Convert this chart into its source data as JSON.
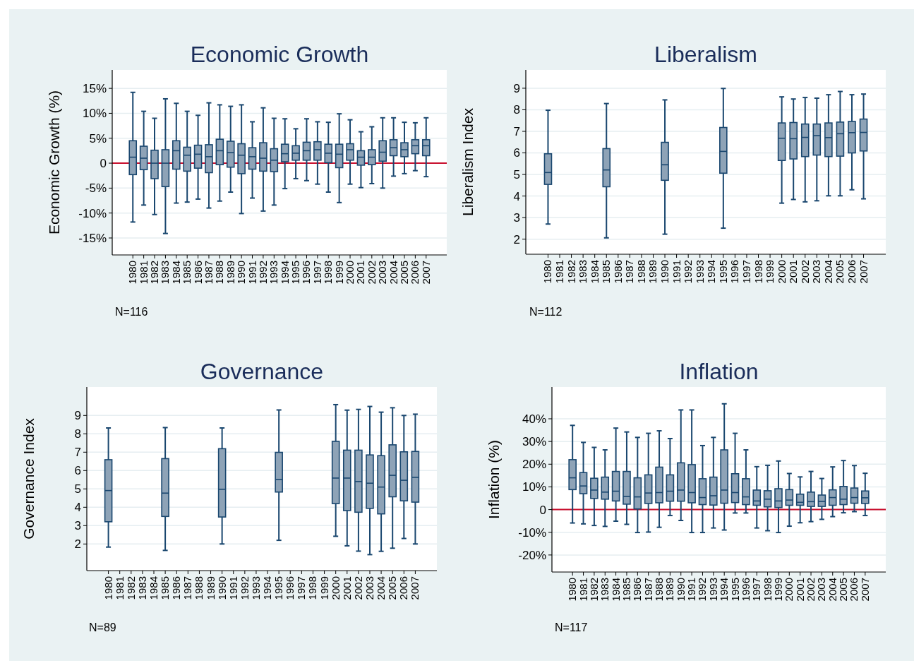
{
  "chart_data": [
    {
      "type": "box",
      "title": "Economic Growth",
      "ylabel": "Economic Growth (%)",
      "annotations": [
        "N=116"
      ],
      "grid": "y",
      "color": "#8ea3b7",
      "categories": [
        "1980",
        "1981",
        "1982",
        "1983",
        "1984",
        "1985",
        "1986",
        "1987",
        "1988",
        "1989",
        "1990",
        "1991",
        "1992",
        "1993",
        "1994",
        "1995",
        "1996",
        "1997",
        "1998",
        "1999",
        "2000",
        "2001",
        "2002",
        "2003",
        "2004",
        "2005",
        "2006",
        "2007"
      ],
      "ylim": [
        -18.4,
        18.7
      ],
      "yticks": [
        {
          "value": 15,
          "label": "15%"
        },
        {
          "value": 10,
          "label": "10%"
        },
        {
          "value": 5,
          "label": "5%"
        },
        0,
        {
          "value": -5,
          "label": "-5%"
        },
        {
          "value": -10,
          "label": "-10%"
        },
        {
          "value": -15,
          "label": "-15%"
        }
      ],
      "ref_lines": [
        {
          "axis": "y",
          "value": 0,
          "label": null,
          "color": "#c8102e"
        }
      ],
      "boxes": [
        {
          "low": -11.8,
          "q1": -2.3,
          "median": 1.2,
          "q3": 4.5,
          "high": 14.2
        },
        {
          "low": -8.4,
          "q1": -1.3,
          "median": 1.0,
          "q3": 3.4,
          "high": 10.4
        },
        {
          "low": -10.3,
          "q1": -3.1,
          "median": 0,
          "q3": 2.6,
          "high": 9.0
        },
        {
          "low": -14.1,
          "q1": -4.7,
          "median": 0,
          "q3": 2.7,
          "high": 12.9
        },
        {
          "low": -8.0,
          "q1": -1.2,
          "median": 2.5,
          "q3": 4.5,
          "high": 12.0
        },
        {
          "low": -7.8,
          "q1": -1.6,
          "median": 1.6,
          "q3": 3.2,
          "high": 10.4
        },
        {
          "low": -7.2,
          "q1": -1.0,
          "median": 1.8,
          "q3": 3.6,
          "high": 9.6
        },
        {
          "low": -9.0,
          "q1": -1.9,
          "median": 1.3,
          "q3": 3.7,
          "high": 12.1
        },
        {
          "low": -7.6,
          "q1": -0.3,
          "median": 2.5,
          "q3": 4.8,
          "high": 11.7
        },
        {
          "low": -5.8,
          "q1": -0.8,
          "median": 2.1,
          "q3": 4.4,
          "high": 11.4
        },
        {
          "low": -10.1,
          "q1": -2.1,
          "median": 1.6,
          "q3": 3.9,
          "high": 11.7
        },
        {
          "low": -7.0,
          "q1": -1.2,
          "median": 1.3,
          "q3": 3.1,
          "high": 8.3
        },
        {
          "low": -9.6,
          "q1": -1.6,
          "median": 1.0,
          "q3": 4.1,
          "high": 11.1
        },
        {
          "low": -8.4,
          "q1": -1.7,
          "median": 0.6,
          "q3": 2.9,
          "high": 9.0
        },
        {
          "low": -5.1,
          "q1": 0.3,
          "median": 1.9,
          "q3": 3.8,
          "high": 8.9
        },
        {
          "low": -3.1,
          "q1": 0.6,
          "median": 2.0,
          "q3": 3.5,
          "high": 6.9
        },
        {
          "low": -3.5,
          "q1": 0.6,
          "median": 2.5,
          "q3": 4.2,
          "high": 8.9
        },
        {
          "low": -4.2,
          "q1": 0.6,
          "median": 2.7,
          "q3": 4.3,
          "high": 8.3
        },
        {
          "low": -5.8,
          "q1": 0.1,
          "median": 2.0,
          "q3": 3.8,
          "high": 8.2
        },
        {
          "low": -7.9,
          "q1": -0.9,
          "median": 1.8,
          "q3": 3.8,
          "high": 9.9
        },
        {
          "low": -4.2,
          "q1": 0.6,
          "median": 2.7,
          "q3": 3.9,
          "high": 8.7
        },
        {
          "low": -4.9,
          "q1": -0.4,
          "median": 1.2,
          "q3": 2.5,
          "high": 6.3
        },
        {
          "low": -4.1,
          "q1": -0.3,
          "median": 1.2,
          "q3": 2.7,
          "high": 7.3
        },
        {
          "low": -5.0,
          "q1": 0.4,
          "median": 2.2,
          "q3": 4.5,
          "high": 9.1
        },
        {
          "low": -2.6,
          "q1": 1.5,
          "median": 3.1,
          "q3": 4.7,
          "high": 9.1
        },
        {
          "low": -2.1,
          "q1": 1.3,
          "median": 2.7,
          "q3": 4.1,
          "high": 8.2
        },
        {
          "low": -1.5,
          "q1": 1.9,
          "median": 3.5,
          "q3": 4.7,
          "high": 8.1
        },
        {
          "low": -2.7,
          "q1": 1.5,
          "median": 3.5,
          "q3": 4.7,
          "high": 9.1
        }
      ]
    },
    {
      "type": "box",
      "title": "Liberalism",
      "ylabel": "Liberalism Index",
      "annotations": [
        "N=112"
      ],
      "grid": "y",
      "color": "#8ea3b7",
      "categories": [
        "1980",
        "1981",
        "1982",
        "1983",
        "1984",
        "1985",
        "1986",
        "1987",
        "1988",
        "1989",
        "1990",
        "1991",
        "1992",
        "1993",
        "1994",
        "1995",
        "1996",
        "1997",
        "1998",
        "1999",
        "2000",
        "2001",
        "2002",
        "2003",
        "2004",
        "2005",
        "2006",
        "2007"
      ],
      "ylim": [
        1.3,
        9.85
      ],
      "yticks": [
        2,
        3,
        4,
        5,
        6,
        7,
        8,
        9
      ],
      "boxes": [
        {
          "low": 2.7,
          "q1": 4.54,
          "median": 5.09,
          "q3": 5.96,
          "high": 7.98
        },
        null,
        null,
        null,
        null,
        {
          "low": 2.06,
          "q1": 4.43,
          "median": 5.21,
          "q3": 6.2,
          "high": 8.29
        },
        null,
        null,
        null,
        null,
        {
          "low": 2.23,
          "q1": 4.73,
          "median": 5.45,
          "q3": 6.49,
          "high": 8.46
        },
        null,
        null,
        null,
        null,
        {
          "low": 2.51,
          "q1": 5.06,
          "median": 6.07,
          "q3": 7.18,
          "high": 8.99
        },
        null,
        null,
        null,
        null,
        {
          "low": 3.67,
          "q1": 5.65,
          "median": 6.68,
          "q3": 7.39,
          "high": 8.6
        },
        {
          "low": 3.84,
          "q1": 5.72,
          "median": 6.66,
          "q3": 7.41,
          "high": 8.5
        },
        {
          "low": 3.73,
          "q1": 5.83,
          "median": 6.72,
          "q3": 7.34,
          "high": 8.57
        },
        {
          "low": 3.78,
          "q1": 5.9,
          "median": 6.8,
          "q3": 7.34,
          "high": 8.54
        },
        {
          "low": 4.01,
          "q1": 5.83,
          "median": 6.71,
          "q3": 7.39,
          "high": 8.7
        },
        {
          "low": 4.01,
          "q1": 5.85,
          "median": 6.89,
          "q3": 7.43,
          "high": 8.85
        },
        {
          "low": 4.29,
          "q1": 6.0,
          "median": 6.94,
          "q3": 7.46,
          "high": 8.7
        },
        {
          "low": 3.87,
          "q1": 6.09,
          "median": 6.95,
          "q3": 7.57,
          "high": 8.73
        }
      ]
    },
    {
      "type": "box",
      "title": "Governance",
      "ylabel": "Governance Index",
      "annotations": [
        "N=89"
      ],
      "grid": "y",
      "color": "#8ea3b7",
      "categories": [
        "1980",
        "1981",
        "1982",
        "1983",
        "1984",
        "1985",
        "1986",
        "1987",
        "1988",
        "1989",
        "1990",
        "1991",
        "1992",
        "1993",
        "1994",
        "1995",
        "1996",
        "1997",
        "1998",
        "1999",
        "2000",
        "2001",
        "2002",
        "2003",
        "2004",
        "2005",
        "2006",
        "2007"
      ],
      "ylim": [
        0.55,
        10.55
      ],
      "yticks": [
        2,
        3,
        4,
        5,
        6,
        7,
        8,
        9
      ],
      "boxes": [
        {
          "low": 1.83,
          "q1": 3.21,
          "median": 4.91,
          "q3": 6.59,
          "high": 8.32
        },
        null,
        null,
        null,
        null,
        {
          "low": 1.65,
          "q1": 3.5,
          "median": 4.77,
          "q3": 6.65,
          "high": 8.34
        },
        null,
        null,
        null,
        null,
        {
          "low": 2.0,
          "q1": 3.47,
          "median": 4.98,
          "q3": 7.19,
          "high": 8.32
        },
        null,
        null,
        null,
        null,
        {
          "low": 2.2,
          "q1": 4.83,
          "median": 5.51,
          "q3": 6.99,
          "high": 9.3
        },
        null,
        null,
        null,
        null,
        {
          "low": 2.42,
          "q1": 4.2,
          "median": 5.59,
          "q3": 7.59,
          "high": 9.59
        },
        {
          "low": 1.9,
          "q1": 3.82,
          "median": 5.59,
          "q3": 7.11,
          "high": 9.29
        },
        {
          "low": 1.61,
          "q1": 3.73,
          "median": 5.4,
          "q3": 7.11,
          "high": 9.33
        },
        {
          "low": 1.42,
          "q1": 3.94,
          "median": 5.31,
          "q3": 6.85,
          "high": 9.49
        },
        {
          "low": 1.6,
          "q1": 3.64,
          "median": 5.1,
          "q3": 6.81,
          "high": 9.18
        },
        {
          "low": 1.77,
          "q1": 4.57,
          "median": 5.74,
          "q3": 7.4,
          "high": 9.42
        },
        {
          "low": 2.3,
          "q1": 4.35,
          "median": 5.47,
          "q3": 7.02,
          "high": 9.0
        },
        {
          "low": 2.0,
          "q1": 4.28,
          "median": 5.63,
          "q3": 7.04,
          "high": 9.07
        }
      ]
    },
    {
      "type": "box",
      "title": "Inflation",
      "ylabel": "Inflation (%)",
      "annotations": [
        "N=117"
      ],
      "grid": "y",
      "color": "#8ea3b7",
      "categories": [
        "1980",
        "1981",
        "1982",
        "1983",
        "1984",
        "1985",
        "1986",
        "1987",
        "1988",
        "1989",
        "1990",
        "1991",
        "1992",
        "1993",
        "1994",
        "1995",
        "1996",
        "1997",
        "1998",
        "1999",
        "2000",
        "2001",
        "2002",
        "2003",
        "2004",
        "2005",
        "2006",
        "2007"
      ],
      "ylim": [
        -27.5,
        54
      ],
      "yticks": [
        {
          "value": 40,
          "label": "40%"
        },
        {
          "value": 30,
          "label": "30%"
        },
        {
          "value": 20,
          "label": "20%"
        },
        {
          "value": 10,
          "label": "10%"
        },
        0,
        {
          "value": -10,
          "label": "-10%"
        },
        {
          "value": -20,
          "label": "-20%"
        }
      ],
      "ref_lines": [
        {
          "axis": "y",
          "value": 0,
          "label": null,
          "color": "#c8102e"
        }
      ],
      "boxes": [
        {
          "low": -5.9,
          "q1": 8.8,
          "median": 14.0,
          "q3": 22.0,
          "high": 37.1
        },
        {
          "low": -6.3,
          "q1": 7.0,
          "median": 10.4,
          "q3": 16.3,
          "high": 29.6
        },
        {
          "low": -7.0,
          "q1": 4.9,
          "median": 8.6,
          "q3": 13.8,
          "high": 27.4
        },
        {
          "low": -7.4,
          "q1": 4.6,
          "median": 7.7,
          "q3": 14.3,
          "high": 26.3
        },
        {
          "low": -5.1,
          "q1": 3.8,
          "median": 8.1,
          "q3": 16.8,
          "high": 35.9
        },
        {
          "low": -6.5,
          "q1": 2.4,
          "median": 5.8,
          "q3": 16.8,
          "high": 34.2
        },
        {
          "low": -10.1,
          "q1": 0.3,
          "median": 5.6,
          "q3": 14.0,
          "high": 31.8
        },
        {
          "low": -9.9,
          "q1": 2.7,
          "median": 7.3,
          "q3": 15.3,
          "high": 33.6
        },
        {
          "low": -7.8,
          "q1": 3.0,
          "median": 7.5,
          "q3": 18.7,
          "high": 34.7
        },
        {
          "low": -2.6,
          "q1": 3.7,
          "median": 8.1,
          "q3": 15.3,
          "high": 31.3
        },
        {
          "low": -4.8,
          "q1": 3.7,
          "median": 8.6,
          "q3": 20.6,
          "high": 43.9
        },
        {
          "low": -10.1,
          "q1": 3.0,
          "median": 7.5,
          "q3": 19.8,
          "high": 43.9
        },
        {
          "low": -10.1,
          "q1": 2.2,
          "median": 5.3,
          "q3": 13.6,
          "high": 28.2
        },
        {
          "low": -8.1,
          "q1": 2.0,
          "median": 6.1,
          "q3": 14.3,
          "high": 31.8
        },
        {
          "low": -9.0,
          "q1": 2.8,
          "median": 8.6,
          "q3": 26.3,
          "high": 46.6
        },
        {
          "low": -1.5,
          "q1": 3.1,
          "median": 7.5,
          "q3": 15.8,
          "high": 33.6
        },
        {
          "low": -1.5,
          "q1": 2.2,
          "median": 5.6,
          "q3": 13.6,
          "high": 26.3
        },
        {
          "low": -8.1,
          "q1": 1.9,
          "median": 3.8,
          "q3": 8.6,
          "high": 18.9
        },
        {
          "low": -9.3,
          "q1": 1.2,
          "median": 4.6,
          "q3": 8.3,
          "high": 19.5
        },
        {
          "low": -10.1,
          "q1": 0.9,
          "median": 3.8,
          "q3": 9.2,
          "high": 21.4
        },
        {
          "low": -7.3,
          "q1": 1.9,
          "median": 4.2,
          "q3": 8.8,
          "high": 15.9
        },
        {
          "low": -5.8,
          "q1": 1.9,
          "median": 3.2,
          "q3": 6.8,
          "high": 14.4
        },
        {
          "low": -5.3,
          "q1": 1.4,
          "median": 3.5,
          "q3": 7.7,
          "high": 16.8
        },
        {
          "low": -4.3,
          "q1": 1.4,
          "median": 3.6,
          "q3": 6.4,
          "high": 13.7
        },
        {
          "low": -3.1,
          "q1": 1.9,
          "median": 5.3,
          "q3": 8.7,
          "high": 18.8
        },
        {
          "low": -1.4,
          "q1": 2.2,
          "median": 4.6,
          "q3": 10.2,
          "high": 21.6
        },
        {
          "low": -0.9,
          "q1": 2.8,
          "median": 5.3,
          "q3": 9.5,
          "high": 19.4
        },
        {
          "low": -2.6,
          "q1": 2.7,
          "median": 5.2,
          "q3": 8.2,
          "high": 16.0
        }
      ]
    }
  ]
}
